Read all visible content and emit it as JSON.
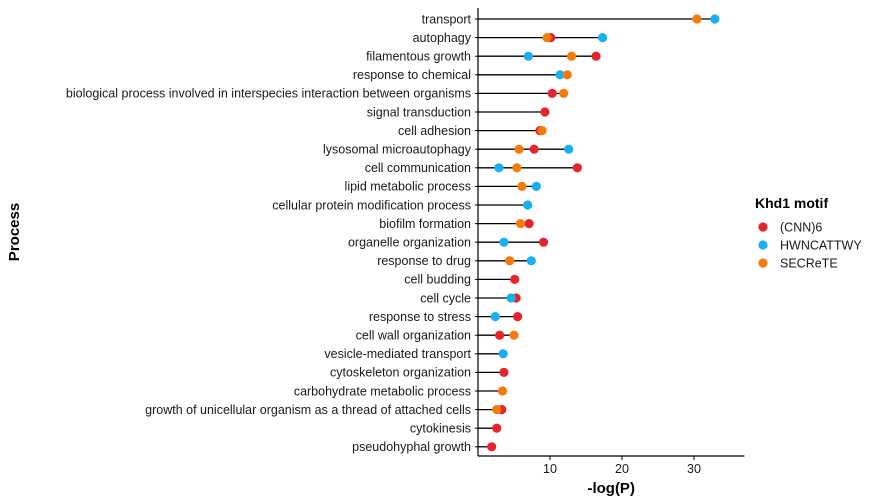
{
  "chart_data": {
    "type": "scatter",
    "subtype": "dumbbell",
    "xlabel": "-log(P)",
    "ylabel": "Process",
    "xlim": [
      0,
      37
    ],
    "xticks": [
      10,
      20,
      30
    ],
    "grid": false,
    "legend": {
      "title": "Khd1 motif",
      "position": "right",
      "entries": [
        {
          "name": "(CNN)6",
          "color": "#e5242c"
        },
        {
          "name": "HWNCATTWY",
          "color": "#1aaff0"
        },
        {
          "name": "SECReTE",
          "color": "#f57a0a"
        }
      ]
    },
    "categories": [
      "transport",
      "autophagy",
      "filamentous growth",
      "response to chemical",
      "biological process involved in interspecies interaction between organisms",
      "signal transduction",
      "cell adhesion",
      "lysosomal microautophagy",
      "cell communication",
      "lipid metabolic process",
      "cellular protein modification process",
      "biofilm formation",
      "organelle organization",
      "response to drug",
      "cell budding",
      "cell cycle",
      "response to stress",
      "cell wall organization",
      "vesicle-mediated transport",
      "cytoskeleton organization",
      "carbohydrate metabolic process",
      "growth of unicellular organism as a thread of attached cells",
      "cytokinesis",
      "pseudohyphal growth"
    ],
    "series": [
      {
        "name": "(CNN)6",
        "color": "#e5242c",
        "values": [
          null,
          10.1,
          16.4,
          null,
          10.3,
          9.3,
          8.6,
          7.8,
          13.8,
          null,
          null,
          7.1,
          9.1,
          null,
          5.1,
          5.3,
          5.5,
          3.0,
          null,
          3.6,
          null,
          3.3,
          2.6,
          1.9
        ]
      },
      {
        "name": "HWNCATTWY",
        "color": "#1aaff0",
        "values": [
          32.9,
          17.3,
          7.0,
          11.4,
          null,
          null,
          null,
          12.6,
          2.9,
          8.1,
          6.9,
          null,
          3.6,
          7.4,
          null,
          4.6,
          2.4,
          null,
          3.5,
          null,
          null,
          null,
          null,
          null
        ]
      },
      {
        "name": "SECReTE",
        "color": "#f57a0a",
        "values": [
          30.4,
          9.6,
          13.0,
          12.4,
          11.9,
          null,
          8.9,
          5.7,
          5.4,
          6.1,
          null,
          5.9,
          null,
          4.4,
          null,
          null,
          null,
          5.0,
          null,
          null,
          3.4,
          2.6,
          null,
          null
        ]
      }
    ]
  }
}
